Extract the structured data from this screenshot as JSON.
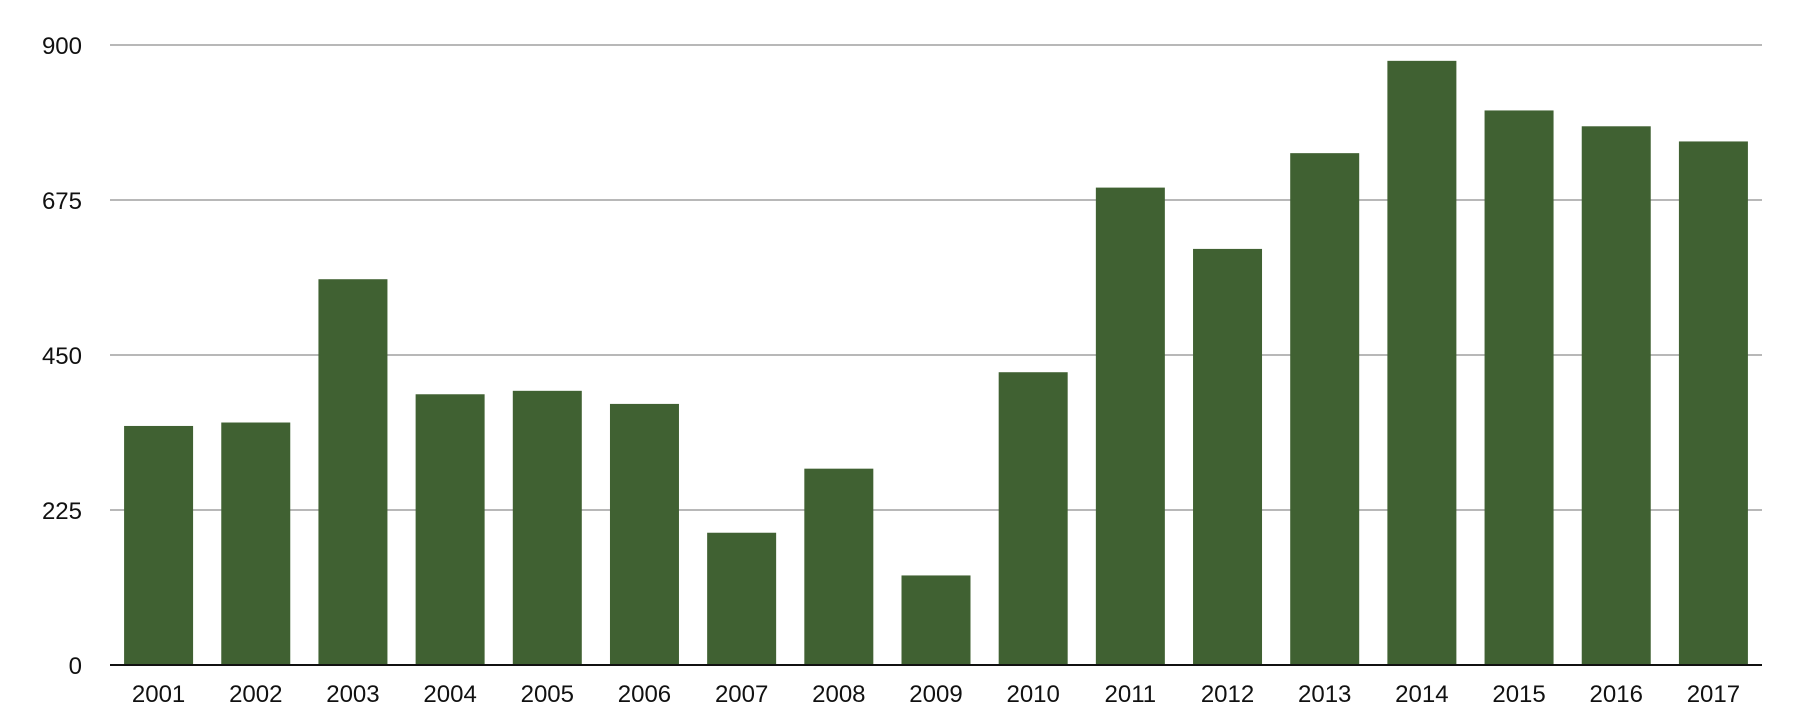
{
  "chart_data": {
    "type": "bar",
    "title": "",
    "xlabel": "",
    "ylabel": "",
    "categories": [
      "2001",
      "2002",
      "2003",
      "2004",
      "2005",
      "2006",
      "2007",
      "2008",
      "2009",
      "2010",
      "2011",
      "2012",
      "2013",
      "2014",
      "2015",
      "2016",
      "2017"
    ],
    "values": [
      347,
      352,
      560,
      393,
      398,
      379,
      192,
      285,
      130,
      425,
      693,
      604,
      743,
      877,
      805,
      782,
      760
    ],
    "yticks": [
      "0",
      "225",
      "450",
      "675",
      "900"
    ],
    "ylim": [
      0,
      900
    ],
    "grid": true,
    "legend": "none",
    "bar_color": "#406132",
    "grid_color": "#b8b8b8",
    "axis_color": "#111111"
  }
}
